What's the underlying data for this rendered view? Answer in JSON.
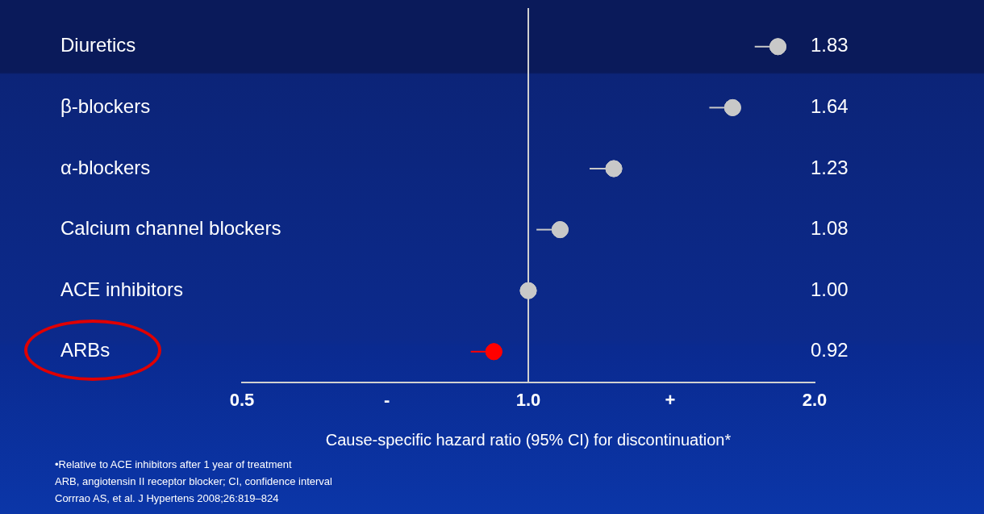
{
  "chart_data": {
    "type": "scatter",
    "orientation": "horizontal",
    "categories": [
      "Diuretics",
      "β-blockers",
      "α-blockers",
      "Calcium channel blockers",
      "ACE inhibitors",
      "ARBs"
    ],
    "values": [
      1.83,
      1.64,
      1.23,
      1.08,
      1.0,
      0.92
    ],
    "value_labels": [
      "1.83",
      "1.64",
      "1.23",
      "1.08",
      "1.00",
      "0.92"
    ],
    "colors": [
      "#c8c8c8",
      "#c8c8c8",
      "#c8c8c8",
      "#c8c8c8",
      "#c8c8c8",
      "#ff0000"
    ],
    "errors": [
      [
        1.73,
        1.83
      ],
      [
        1.55,
        1.64
      ],
      [
        1.16,
        1.23
      ],
      [
        1.02,
        1.08
      ],
      null,
      [
        0.87,
        0.92
      ]
    ],
    "xlabel": "Cause-specific hazard ratio (95% CI) for discontinuation*",
    "log": "x",
    "xlim": [
      0.5,
      2.0
    ],
    "xticks": [
      0.5,
      {
        "value": 0.71,
        "label": "-"
      },
      {
        "value": 1.0,
        "label": "1.0"
      },
      {
        "value": 1.41,
        "label": "+"
      },
      {
        "value": 2.0,
        "label": "2.0"
      }
    ],
    "ref_lines": [
      {
        "axis": "x",
        "value": 1.0,
        "color": "#d0d0d0"
      }
    ],
    "grid": false,
    "legend": false,
    "marker": "circle",
    "annotations": [
      "•Relative to ACE inhibitors after 1 year of treatment",
      "ARB, angiotensin II receptor blocker; CI, confidence interval",
      "Corrrao AS, et al. J Hypertens 2008;26:819–824"
    ]
  }
}
